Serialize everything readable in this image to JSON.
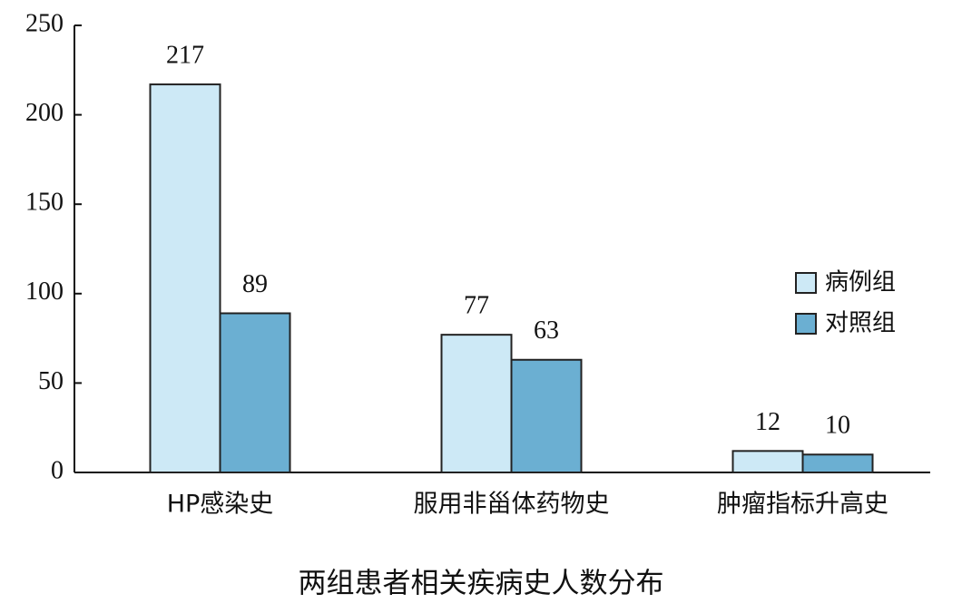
{
  "chart_data": {
    "type": "bar",
    "title": "两组患者相关疾病史人数分布",
    "categories": [
      "HP感染史",
      "服用非甾体药物史",
      "肿瘤指标升高史"
    ],
    "series": [
      {
        "name": "病例组",
        "color": "#cde9f6",
        "values": [
          217,
          77,
          12
        ]
      },
      {
        "name": "对照组",
        "color": "#6bafd2",
        "values": [
          89,
          63,
          10
        ]
      }
    ],
    "ylim": [
      0,
      250
    ],
    "yticks": [
      0,
      50,
      100,
      150,
      200,
      250
    ],
    "legend": "right"
  }
}
